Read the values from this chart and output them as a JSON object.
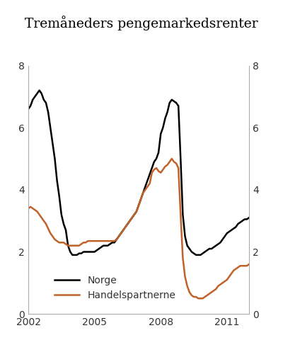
{
  "title": "Tremåneders pengemarkedsrenter",
  "xlim": [
    2002.0,
    2012.0
  ],
  "ylim": [
    0,
    8
  ],
  "yticks": [
    0,
    2,
    4,
    6,
    8
  ],
  "xticks": [
    2002,
    2005,
    2008,
    2011
  ],
  "norge_color": "#000000",
  "handel_color": "#C0622A",
  "legend_labels": [
    "Norge",
    "Handelspartnerne"
  ],
  "norge_data": [
    [
      2002.0,
      6.6
    ],
    [
      2002.1,
      6.7
    ],
    [
      2002.2,
      6.9
    ],
    [
      2002.3,
      7.0
    ],
    [
      2002.4,
      7.1
    ],
    [
      2002.5,
      7.2
    ],
    [
      2002.6,
      7.1
    ],
    [
      2002.7,
      6.9
    ],
    [
      2002.8,
      6.8
    ],
    [
      2002.9,
      6.5
    ],
    [
      2003.0,
      6.0
    ],
    [
      2003.1,
      5.5
    ],
    [
      2003.2,
      5.0
    ],
    [
      2003.3,
      4.3
    ],
    [
      2003.4,
      3.8
    ],
    [
      2003.5,
      3.2
    ],
    [
      2003.6,
      2.9
    ],
    [
      2003.7,
      2.7
    ],
    [
      2003.8,
      2.2
    ],
    [
      2003.9,
      2.0
    ],
    [
      2004.0,
      1.9
    ],
    [
      2004.1,
      1.9
    ],
    [
      2004.2,
      1.9
    ],
    [
      2004.3,
      1.95
    ],
    [
      2004.4,
      1.95
    ],
    [
      2004.5,
      2.0
    ],
    [
      2004.6,
      2.0
    ],
    [
      2004.7,
      2.0
    ],
    [
      2004.8,
      2.0
    ],
    [
      2004.9,
      2.0
    ],
    [
      2005.0,
      2.0
    ],
    [
      2005.1,
      2.05
    ],
    [
      2005.2,
      2.1
    ],
    [
      2005.3,
      2.15
    ],
    [
      2005.4,
      2.2
    ],
    [
      2005.5,
      2.2
    ],
    [
      2005.6,
      2.2
    ],
    [
      2005.7,
      2.25
    ],
    [
      2005.8,
      2.3
    ],
    [
      2005.9,
      2.3
    ],
    [
      2006.0,
      2.4
    ],
    [
      2006.1,
      2.5
    ],
    [
      2006.2,
      2.6
    ],
    [
      2006.3,
      2.7
    ],
    [
      2006.4,
      2.8
    ],
    [
      2006.5,
      2.9
    ],
    [
      2006.6,
      3.0
    ],
    [
      2006.7,
      3.1
    ],
    [
      2006.8,
      3.2
    ],
    [
      2006.9,
      3.3
    ],
    [
      2007.0,
      3.5
    ],
    [
      2007.1,
      3.7
    ],
    [
      2007.2,
      3.9
    ],
    [
      2007.3,
      4.1
    ],
    [
      2007.4,
      4.3
    ],
    [
      2007.5,
      4.5
    ],
    [
      2007.6,
      4.7
    ],
    [
      2007.7,
      4.9
    ],
    [
      2007.8,
      5.0
    ],
    [
      2007.9,
      5.2
    ],
    [
      2008.0,
      5.8
    ],
    [
      2008.1,
      6.0
    ],
    [
      2008.2,
      6.3
    ],
    [
      2008.3,
      6.5
    ],
    [
      2008.4,
      6.8
    ],
    [
      2008.5,
      6.9
    ],
    [
      2008.6,
      6.85
    ],
    [
      2008.7,
      6.8
    ],
    [
      2008.8,
      6.7
    ],
    [
      2008.9,
      5.0
    ],
    [
      2009.0,
      3.2
    ],
    [
      2009.1,
      2.5
    ],
    [
      2009.2,
      2.2
    ],
    [
      2009.3,
      2.1
    ],
    [
      2009.4,
      2.0
    ],
    [
      2009.5,
      1.95
    ],
    [
      2009.6,
      1.9
    ],
    [
      2009.7,
      1.9
    ],
    [
      2009.8,
      1.9
    ],
    [
      2009.9,
      1.95
    ],
    [
      2010.0,
      2.0
    ],
    [
      2010.1,
      2.05
    ],
    [
      2010.2,
      2.1
    ],
    [
      2010.3,
      2.1
    ],
    [
      2010.4,
      2.15
    ],
    [
      2010.5,
      2.2
    ],
    [
      2010.6,
      2.25
    ],
    [
      2010.7,
      2.3
    ],
    [
      2010.8,
      2.4
    ],
    [
      2010.9,
      2.5
    ],
    [
      2011.0,
      2.6
    ],
    [
      2011.1,
      2.65
    ],
    [
      2011.2,
      2.7
    ],
    [
      2011.3,
      2.75
    ],
    [
      2011.4,
      2.8
    ],
    [
      2011.5,
      2.9
    ],
    [
      2011.6,
      2.95
    ],
    [
      2011.7,
      3.0
    ],
    [
      2011.8,
      3.05
    ],
    [
      2011.9,
      3.05
    ],
    [
      2012.0,
      3.1
    ]
  ],
  "handel_data": [
    [
      2002.0,
      3.4
    ],
    [
      2002.1,
      3.45
    ],
    [
      2002.2,
      3.4
    ],
    [
      2002.3,
      3.35
    ],
    [
      2002.4,
      3.3
    ],
    [
      2002.5,
      3.2
    ],
    [
      2002.6,
      3.1
    ],
    [
      2002.7,
      3.0
    ],
    [
      2002.8,
      2.9
    ],
    [
      2002.9,
      2.75
    ],
    [
      2003.0,
      2.6
    ],
    [
      2003.1,
      2.5
    ],
    [
      2003.2,
      2.4
    ],
    [
      2003.3,
      2.35
    ],
    [
      2003.4,
      2.3
    ],
    [
      2003.5,
      2.3
    ],
    [
      2003.6,
      2.3
    ],
    [
      2003.7,
      2.25
    ],
    [
      2003.8,
      2.2
    ],
    [
      2003.9,
      2.2
    ],
    [
      2004.0,
      2.2
    ],
    [
      2004.1,
      2.2
    ],
    [
      2004.2,
      2.2
    ],
    [
      2004.3,
      2.2
    ],
    [
      2004.4,
      2.25
    ],
    [
      2004.5,
      2.3
    ],
    [
      2004.6,
      2.3
    ],
    [
      2004.7,
      2.35
    ],
    [
      2004.8,
      2.35
    ],
    [
      2004.9,
      2.35
    ],
    [
      2005.0,
      2.35
    ],
    [
      2005.1,
      2.35
    ],
    [
      2005.2,
      2.35
    ],
    [
      2005.3,
      2.35
    ],
    [
      2005.4,
      2.35
    ],
    [
      2005.5,
      2.35
    ],
    [
      2005.6,
      2.35
    ],
    [
      2005.7,
      2.35
    ],
    [
      2005.8,
      2.35
    ],
    [
      2005.9,
      2.35
    ],
    [
      2006.0,
      2.4
    ],
    [
      2006.1,
      2.5
    ],
    [
      2006.2,
      2.6
    ],
    [
      2006.3,
      2.7
    ],
    [
      2006.4,
      2.8
    ],
    [
      2006.5,
      2.9
    ],
    [
      2006.6,
      3.0
    ],
    [
      2006.7,
      3.1
    ],
    [
      2006.8,
      3.2
    ],
    [
      2006.9,
      3.3
    ],
    [
      2007.0,
      3.5
    ],
    [
      2007.1,
      3.7
    ],
    [
      2007.2,
      3.9
    ],
    [
      2007.3,
      4.0
    ],
    [
      2007.4,
      4.1
    ],
    [
      2007.5,
      4.2
    ],
    [
      2007.6,
      4.55
    ],
    [
      2007.7,
      4.65
    ],
    [
      2007.8,
      4.7
    ],
    [
      2007.9,
      4.6
    ],
    [
      2008.0,
      4.55
    ],
    [
      2008.1,
      4.65
    ],
    [
      2008.2,
      4.75
    ],
    [
      2008.3,
      4.8
    ],
    [
      2008.4,
      4.9
    ],
    [
      2008.5,
      5.0
    ],
    [
      2008.6,
      4.9
    ],
    [
      2008.7,
      4.85
    ],
    [
      2008.8,
      4.7
    ],
    [
      2008.9,
      3.2
    ],
    [
      2009.0,
      1.8
    ],
    [
      2009.1,
      1.2
    ],
    [
      2009.2,
      0.9
    ],
    [
      2009.3,
      0.7
    ],
    [
      2009.4,
      0.6
    ],
    [
      2009.5,
      0.55
    ],
    [
      2009.6,
      0.55
    ],
    [
      2009.7,
      0.5
    ],
    [
      2009.8,
      0.5
    ],
    [
      2009.9,
      0.5
    ],
    [
      2010.0,
      0.55
    ],
    [
      2010.1,
      0.6
    ],
    [
      2010.2,
      0.65
    ],
    [
      2010.3,
      0.7
    ],
    [
      2010.4,
      0.75
    ],
    [
      2010.5,
      0.8
    ],
    [
      2010.6,
      0.9
    ],
    [
      2010.7,
      0.95
    ],
    [
      2010.8,
      1.0
    ],
    [
      2010.9,
      1.05
    ],
    [
      2011.0,
      1.1
    ],
    [
      2011.1,
      1.2
    ],
    [
      2011.2,
      1.3
    ],
    [
      2011.3,
      1.4
    ],
    [
      2011.4,
      1.45
    ],
    [
      2011.5,
      1.5
    ],
    [
      2011.6,
      1.55
    ],
    [
      2011.7,
      1.55
    ],
    [
      2011.8,
      1.55
    ],
    [
      2011.9,
      1.55
    ],
    [
      2012.0,
      1.6
    ]
  ]
}
